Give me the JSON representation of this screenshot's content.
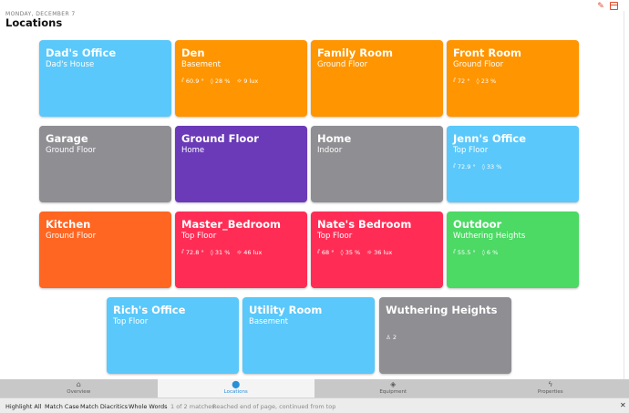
{
  "header": {
    "date": "MONDAY, DECEMBER 7",
    "title": "Locations",
    "edit_icon": "pencil-icon",
    "window_icon": "window-icon"
  },
  "tiles": [
    {
      "name": "Dad's Office",
      "subtitle": "Dad's House",
      "color": "#5ac8fa",
      "sensors": []
    },
    {
      "name": "Den",
      "subtitle": "Basement",
      "color": "#ff9500",
      "sensors": [
        {
          "icon": "thermometer-icon",
          "value": "60.9 °"
        },
        {
          "icon": "humidity-icon",
          "value": "28 %"
        },
        {
          "icon": "sun-icon",
          "value": "9 lux"
        }
      ]
    },
    {
      "name": "Family Room",
      "subtitle": "Ground Floor",
      "color": "#ff9500",
      "sensors": []
    },
    {
      "name": "Front Room",
      "subtitle": "Ground Floor",
      "color": "#ff9500",
      "sensors": [
        {
          "icon": "thermometer-icon",
          "value": "72 °"
        },
        {
          "icon": "humidity-icon",
          "value": "23 %"
        }
      ]
    },
    {
      "name": "Garage",
      "subtitle": "Ground Floor",
      "color": "#8e8e93",
      "sensors": []
    },
    {
      "name": "Ground Floor",
      "subtitle": "Home",
      "color": "#6a3ab8",
      "sensors": []
    },
    {
      "name": "Home",
      "subtitle": "Indoor",
      "color": "#8e8e93",
      "sensors": []
    },
    {
      "name": "Jenn's Office",
      "subtitle": "Top Floor",
      "color": "#5ac8fa",
      "sensors": [
        {
          "icon": "thermometer-icon",
          "value": "72.9 °"
        },
        {
          "icon": "humidity-icon",
          "value": "33 %"
        }
      ]
    },
    {
      "name": "Kitchen",
      "subtitle": "Ground Floor",
      "color": "#ff6622",
      "sensors": []
    },
    {
      "name": "Master_Bedroom",
      "subtitle": "Top Floor",
      "color": "#ff2d55",
      "sensors": [
        {
          "icon": "thermometer-icon",
          "value": "72.8 °"
        },
        {
          "icon": "humidity-icon",
          "value": "31 %"
        },
        {
          "icon": "sun-icon",
          "value": "46 lux"
        }
      ]
    },
    {
      "name": "Nate's Bedroom",
      "subtitle": "Top Floor",
      "color": "#ff2d55",
      "sensors": [
        {
          "icon": "thermometer-icon",
          "value": "68 °"
        },
        {
          "icon": "humidity-icon",
          "value": "35 %"
        },
        {
          "icon": "sun-icon",
          "value": "36 lux"
        }
      ]
    },
    {
      "name": "Outdoor",
      "subtitle": "Wuthering Heights",
      "color": "#4cd964",
      "sensors": [
        {
          "icon": "thermometer-icon",
          "value": "55.5 °"
        },
        {
          "icon": "humidity-icon",
          "value": "6 %"
        }
      ]
    },
    {
      "name": "Rich's Office",
      "subtitle": "Top Floor",
      "color": "#5ac8fa",
      "sensors": []
    },
    {
      "name": "Utility Room",
      "subtitle": "Basement",
      "color": "#5ac8fa",
      "sensors": []
    },
    {
      "name": "Wuthering Heights",
      "subtitle": "",
      "color": "#8e8e93",
      "sensors": [
        {
          "icon": "people-icon",
          "value": "2"
        }
      ]
    }
  ],
  "tabs": [
    {
      "label": "Overview",
      "icon": "home-icon",
      "active": false
    },
    {
      "label": "Locations",
      "icon": "map-pin-icon",
      "active": true
    },
    {
      "label": "Equipment",
      "icon": "cube-icon",
      "active": false
    },
    {
      "label": "Properties",
      "icon": "bolt-icon",
      "active": false
    }
  ],
  "find_bar": {
    "highlight_all": "Highlight All",
    "match_case": "Match Case",
    "match_diacritics": "Match Diacritics",
    "whole_words": "Whole Words",
    "match_count": "1 of 2 matches",
    "status": "Reached end of page, continued from top"
  },
  "colors": {
    "accent": "#2b8fd6",
    "blue": "#5ac8fa",
    "orange": "#ff9500",
    "gray": "#8e8e93",
    "purple": "#6a3ab8",
    "red": "#ff2d55",
    "green": "#4cd964"
  }
}
